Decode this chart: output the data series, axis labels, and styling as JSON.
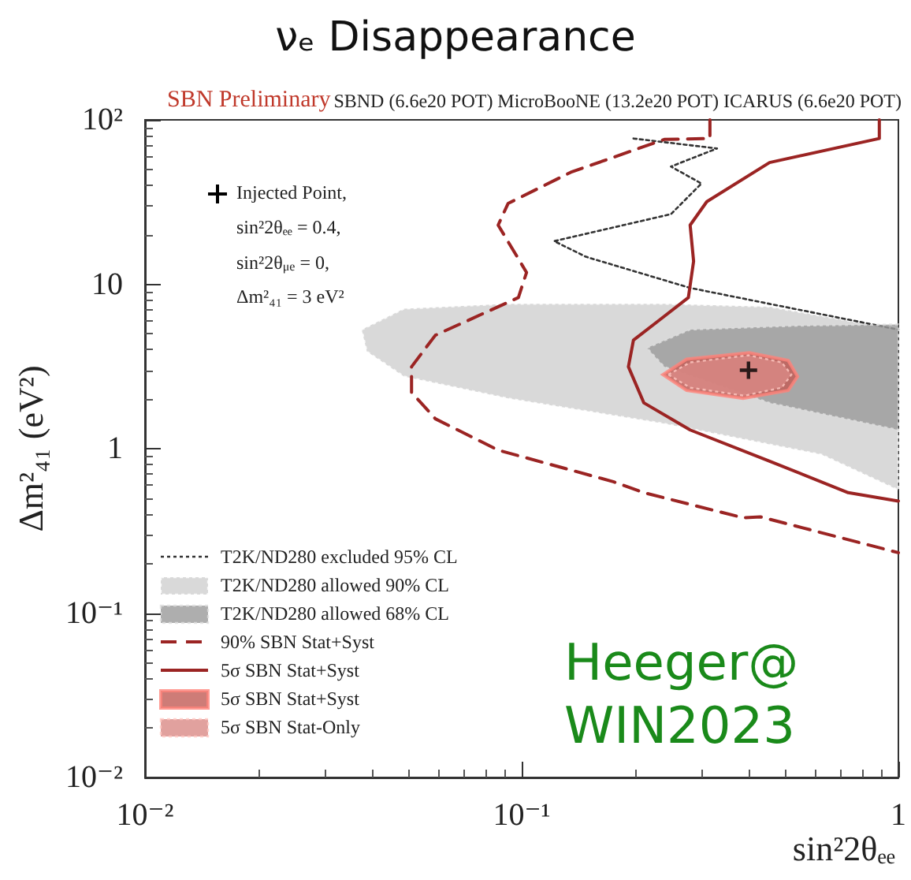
{
  "chart_data": {
    "type": "line",
    "title": "νₑ Disappearance",
    "subtitle": "SBN Preliminary",
    "xlabel": "sin²2θₑₑ",
    "ylabel": "Δm²₄₁ (eV²)",
    "annotations": [
      "SBND (6.6e20 POT) MicroBooNE (13.2e20 POT) ICARUS (6.6e20 POT)",
      "sin²2θₑₑ = 0.4,",
      "sin²2θ$_{μe}$ = 0,",
      "Δm²₄₁ = 3 eV²",
      "Heeger@\nWIN2023"
    ],
    "log": "xy",
    "grid": false,
    "legend": "bottom left",
    "xlim": [
      0.01,
      1
    ],
    "xticks": [
      {
        "value": 0.01,
        "label": "10⁻²"
      },
      {
        "value": 0.1,
        "label": "10⁻¹"
      },
      1
    ],
    "ylim": [
      0.01,
      100
    ],
    "yticks": [
      {
        "value": 0.01,
        "label": "10⁻²"
      },
      {
        "value": 0.1,
        "label": "10⁻¹"
      },
      1,
      10,
      {
        "value": 100,
        "label": "10²"
      }
    ],
    "series": [
      {
        "name": "T2K/ND280 excluded 95% CL",
        "line_style": "dotted",
        "color": "#333333",
        "x": [
          0.198,
          0.33,
          0.249,
          0.3,
          0.249,
          0.122,
          0.148,
          0.28,
          0.455,
          1
        ],
        "values": [
          77,
          67,
          52,
          41,
          26.7,
          18.3,
          14.7,
          9.5,
          7.6,
          5.3
        ]
      },
      {
        "name": "T2K/ND280 allowed 90% CL",
        "type": "area",
        "line_style": "dotted",
        "color": "#d0d0d0",
        "x": [
          0.0376,
          0.0487,
          0.092,
          0.239,
          0.455,
          1,
          1,
          0.625,
          0.239,
          0.092,
          0.0487,
          0.0388
        ],
        "values": [
          5.3,
          7.1,
          7.6,
          7.6,
          7.3,
          5.3,
          0.56,
          0.92,
          1.42,
          2.02,
          2.75,
          3.9
        ]
      },
      {
        "name": "T2K/ND280 allowed 68% CL",
        "type": "area",
        "line_style": "dotted",
        "color": "#9a9a9a",
        "x": [
          0.215,
          0.28,
          0.55,
          1,
          1,
          0.455,
          0.239
        ],
        "values": [
          4.1,
          5.3,
          5.6,
          5.7,
          1.3,
          1.9,
          3.15
        ]
      },
      {
        "name": "90% SBN Stat+Syst",
        "line_style": "dashed",
        "color": "#9b2423",
        "x": [
          0.316,
          0.316,
          0.239,
          0.135,
          0.092,
          0.0866,
          0.103,
          0.098,
          0.059,
          0.051,
          0.051,
          0.059,
          0.0866,
          0.175,
          0.211,
          0.387,
          0.43,
          1
        ],
        "values": [
          100,
          77,
          76,
          48,
          31,
          22.9,
          11.8,
          8.3,
          4.9,
          3.15,
          2.2,
          1.52,
          0.98,
          0.63,
          0.54,
          0.38,
          0.385,
          0.233
        ]
      },
      {
        "name": "5σ SBN Stat+Syst",
        "line_style": "solid",
        "color": "#9b2423",
        "x": [
          0.89,
          0.89,
          0.455,
          0.31,
          0.28,
          0.286,
          0.277,
          0.233,
          0.198,
          0.192,
          0.211,
          0.28,
          0.455,
          0.736,
          1
        ],
        "values": [
          100,
          77,
          55,
          31.8,
          22.9,
          13.8,
          8.3,
          6.1,
          4.57,
          3.15,
          1.9,
          1.3,
          0.84,
          0.54,
          0.48
        ]
      },
      {
        "name": "5σ SBN Stat+Syst",
        "type": "area",
        "line_style": "solid",
        "color": "#c25b55",
        "x": [
          0.237,
          0.274,
          0.402,
          0.51,
          0.54,
          0.51,
          0.387,
          0.274
        ],
        "values": [
          2.82,
          3.5,
          3.84,
          3.44,
          2.75,
          2.26,
          2.02,
          2.26
        ]
      },
      {
        "name": "5σ SBN Stat-Only",
        "type": "area",
        "line_style": "dotted",
        "color": "#d98a86",
        "x": [
          0.245,
          0.28,
          0.4,
          0.49,
          0.52,
          0.49,
          0.39,
          0.28
        ],
        "values": [
          2.82,
          3.35,
          3.7,
          3.35,
          2.82,
          2.35,
          2.1,
          2.35
        ]
      },
      {
        "name": "Injected Point,",
        "type": "scatter",
        "marker": "cross",
        "color": "#000000",
        "x": [
          0.4
        ],
        "values": [
          3
        ]
      }
    ]
  }
}
